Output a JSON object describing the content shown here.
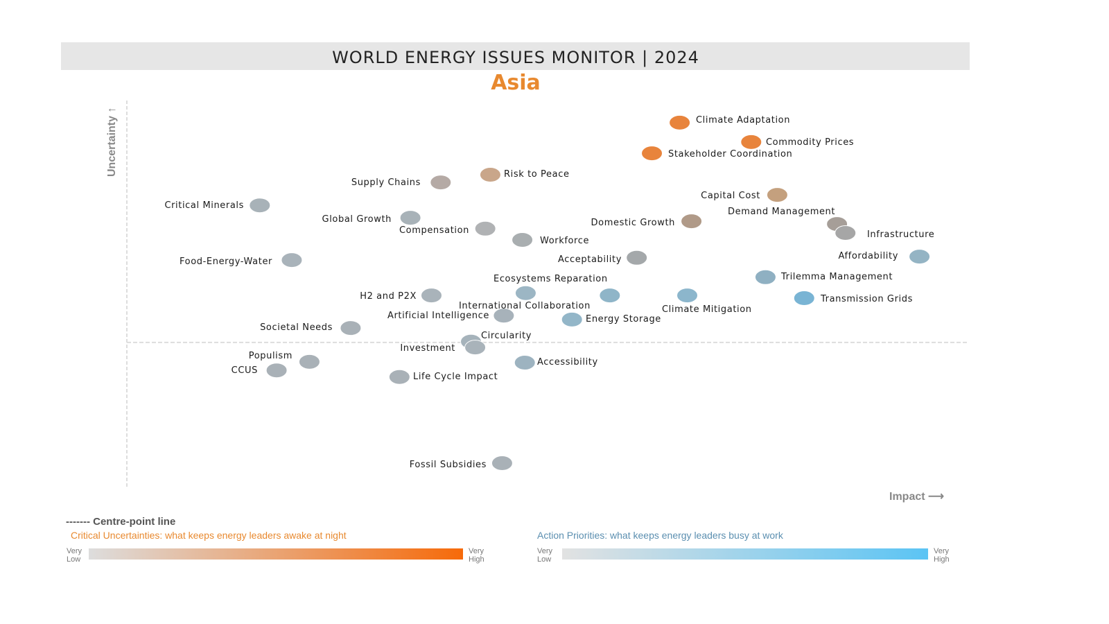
{
  "header": {
    "title": "WORLD ENERGY ISSUES MONITOR | 2024",
    "region": "Asia"
  },
  "chart_data": {
    "type": "scatter",
    "title": "WORLD ENERGY ISSUES MONITOR | 2024",
    "subtitle": "Asia",
    "xlabel": "Impact ⟶",
    "ylabel": "Uncertainty ↑",
    "xlim": [
      0,
      100
    ],
    "ylim": [
      0,
      100
    ],
    "centre_point_y": 37.7,
    "grid": false,
    "points": [
      {
        "name": "Climate Adaptation",
        "impact": 65.7,
        "uncertainty": 94.3,
        "color": "#e8843c"
      },
      {
        "name": "Commodity Prices",
        "impact": 74.2,
        "uncertainty": 89.3,
        "color": "#e8843c"
      },
      {
        "name": "Stakeholder Coordination",
        "impact": 62.4,
        "uncertainty": 86.4,
        "color": "#e8843c"
      },
      {
        "name": "Risk to Peace",
        "impact": 43.2,
        "uncertainty": 80.9,
        "color": "#c9a68a"
      },
      {
        "name": "Supply Chains",
        "impact": 37.3,
        "uncertainty": 78.9,
        "color": "#b5aaa5"
      },
      {
        "name": "Capital Cost",
        "impact": 77.3,
        "uncertainty": 75.7,
        "color": "#c4a07e"
      },
      {
        "name": "Critical Minerals",
        "impact": 15.8,
        "uncertainty": 73.0,
        "color": "#a8b2b8"
      },
      {
        "name": "Global Growth",
        "impact": 33.7,
        "uncertainty": 69.8,
        "color": "#a8b2b8"
      },
      {
        "name": "Domestic Growth",
        "impact": 67.1,
        "uncertainty": 68.9,
        "color": "#b09a88"
      },
      {
        "name": "Demand Management",
        "impact": 84.4,
        "uncertainty": 68.2,
        "color": "#a69e98"
      },
      {
        "name": "Infrastructure",
        "impact": 85.4,
        "uncertainty": 65.9,
        "color": "#a6a6a6"
      },
      {
        "name": "Compensation",
        "impact": 42.6,
        "uncertainty": 67.0,
        "color": "#b0b2b4"
      },
      {
        "name": "Workforce",
        "impact": 47.0,
        "uncertainty": 64.1,
        "color": "#a9aeb0"
      },
      {
        "name": "Food-Energy-Water",
        "impact": 19.6,
        "uncertainty": 58.9,
        "color": "#a9b3ba"
      },
      {
        "name": "Acceptability",
        "impact": 60.6,
        "uncertainty": 59.5,
        "color": "#a4a8aa"
      },
      {
        "name": "Affordability",
        "impact": 94.2,
        "uncertainty": 59.8,
        "color": "#94b4c4"
      },
      {
        "name": "Trilemma Management",
        "impact": 75.9,
        "uncertainty": 54.5,
        "color": "#8fb0c2"
      },
      {
        "name": "Ecosystems Reparation",
        "impact": 47.4,
        "uncertainty": 50.4,
        "color": "#9cb6c4"
      },
      {
        "name": "H2 and P2X",
        "impact": 36.2,
        "uncertainty": 49.8,
        "color": "#a9b3ba"
      },
      {
        "name": "International Collaboration",
        "impact": 57.4,
        "uncertainty": 49.8,
        "color": "#8fb5c8"
      },
      {
        "name": "Climate Mitigation",
        "impact": 66.6,
        "uncertainty": 49.8,
        "color": "#8cb6cc"
      },
      {
        "name": "Transmission Grids",
        "impact": 80.5,
        "uncertainty": 49.1,
        "color": "#79b4d4"
      },
      {
        "name": "Artificial Intelligence",
        "impact": 44.8,
        "uncertainty": 44.6,
        "color": "#a7b2ba"
      },
      {
        "name": "Energy Storage",
        "impact": 52.9,
        "uncertainty": 43.6,
        "color": "#93b6c8"
      },
      {
        "name": "Societal Needs",
        "impact": 26.6,
        "uncertainty": 41.4,
        "color": "#a9b1b7"
      },
      {
        "name": "Circularity",
        "impact": 40.9,
        "uncertainty": 37.9,
        "color": "#a6b3bb"
      },
      {
        "name": "Investment",
        "impact": 41.4,
        "uncertainty": 36.4,
        "color": "#a9b3ba"
      },
      {
        "name": "Accessibility",
        "impact": 47.3,
        "uncertainty": 32.5,
        "color": "#9db3c0"
      },
      {
        "name": "Populism",
        "impact": 21.7,
        "uncertainty": 32.7,
        "color": "#a9b1b7"
      },
      {
        "name": "CCUS",
        "impact": 17.8,
        "uncertainty": 30.5,
        "color": "#a9b1b7"
      },
      {
        "name": "Life Cycle Impact",
        "impact": 32.4,
        "uncertainty": 28.8,
        "color": "#a9b1b7"
      },
      {
        "name": "Fossil Subsidies",
        "impact": 44.6,
        "uncertainty": 6.6,
        "color": "#a9b1b7"
      }
    ]
  },
  "legend": {
    "centre_line": "------- Centre-point line",
    "uncertainties": {
      "title": "Critical Uncertainties: what keeps energy leaders awake at night",
      "low": [
        "Very",
        "Low"
      ],
      "high": [
        "Very",
        "High"
      ],
      "from": "#dddddd",
      "to": "#f66a0a",
      "color": "#e8892f"
    },
    "priorities": {
      "title": "Action Priorities: what keeps energy leaders busy at work",
      "low": [
        "Very",
        "Low"
      ],
      "high": [
        "Very",
        "High"
      ],
      "from": "#e2e2e2",
      "to": "#5bc4f4",
      "color": "#5b8fb0"
    }
  },
  "colors": {
    "accent": "#e8892f",
    "header_bg": "#e6e6e6"
  }
}
